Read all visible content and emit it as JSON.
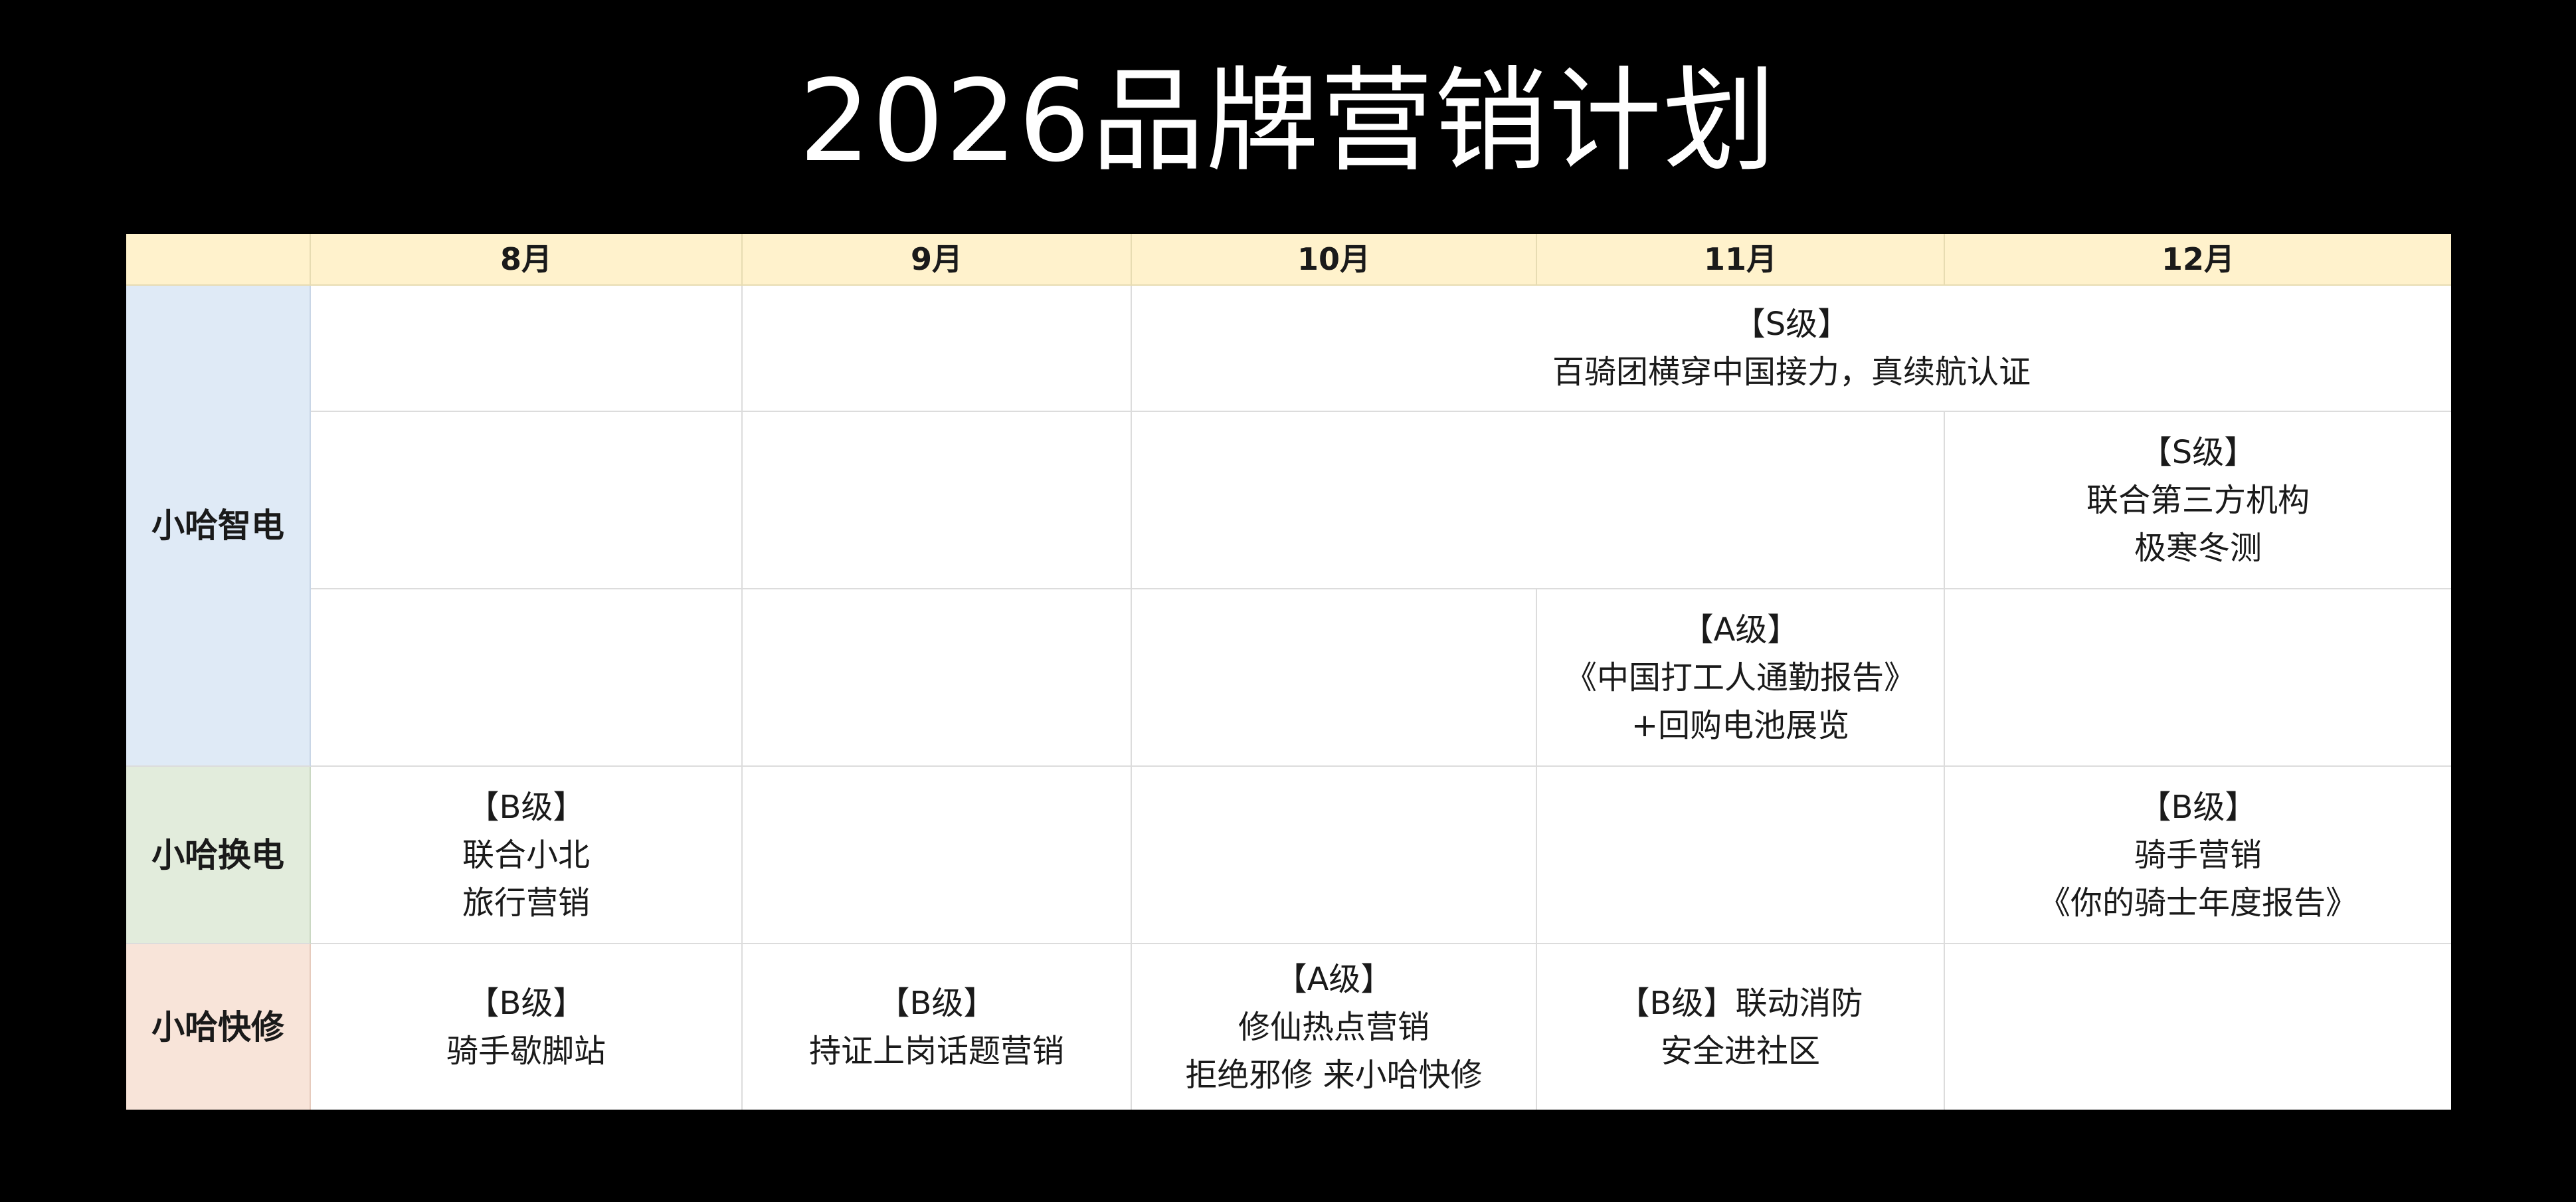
{
  "title": "2026品牌营销计划",
  "colors": {
    "background": "#000000",
    "header_bg": "#fff2cc",
    "zhidian_bg": "#dfeaf6",
    "huandian_bg": "#e2ecdc",
    "kuaixiu_bg": "#f8e4d9"
  },
  "columns": [
    "",
    "8月",
    "9月",
    "10月",
    "11月",
    "12月"
  ],
  "groups": {
    "zhidian": "小哈智电",
    "huandian": "小哈换电",
    "kuaixiu": "小哈快修"
  },
  "cells": {
    "zhidian_r1_oct_dec": "【S级】\n百骑团横穿中国接力，真续航认证",
    "zhidian_r2_dec": "【S级】\n联合第三方机构\n极寒冬测",
    "zhidian_r3_nov": "【A级】\n《中国打工人通勤报告》\n+回购电池展览",
    "huandian_aug": "【B级】\n联合小北\n旅行营销",
    "huandian_dec": "【B级】\n骑手营销\n《你的骑士年度报告》",
    "kuaixiu_aug": "【B级】\n骑手歇脚站",
    "kuaixiu_sep": "【B级】\n持证上岗话题营销",
    "kuaixiu_oct": "【A级】\n修仙热点营销\n拒绝邪修 来小哈快修",
    "kuaixiu_nov": "【B级】联动消防\n安全进社区"
  }
}
